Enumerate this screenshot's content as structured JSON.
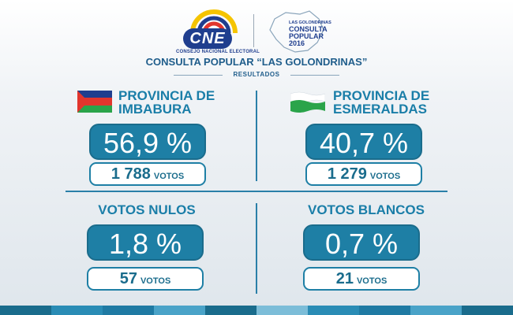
{
  "header": {
    "cne_logo_text": "CNE",
    "cne_subtitle": "CONSEJO NACIONAL ELECTORAL",
    "consulta_logo": {
      "line1": "LAS GOLONDRINAS",
      "line2": "CONSULTA",
      "line3": "POPULAR",
      "line4": "2016"
    },
    "title": "CONSULTA POPULAR “LAS GOLONDRINAS”",
    "subtitle": "RESULTADOS"
  },
  "results": {
    "imbabura": {
      "label_line1": "PROVINCIA DE",
      "label_line2": "IMBABURA",
      "percent": "56,9 %",
      "votes": "1 788",
      "votes_word": "VOTOS"
    },
    "esmeraldas": {
      "label_line1": "PROVINCIA DE",
      "label_line2": "ESMERALDAS",
      "percent": "40,7 %",
      "votes": "1 279",
      "votes_word": "VOTOS"
    },
    "nulos": {
      "label": "VOTOS NULOS",
      "percent": "1,8 %",
      "votes": "57",
      "votes_word": "VOTOS"
    },
    "blancos": {
      "label": "VOTOS BLANCOS",
      "percent": "0,7 %",
      "votes": "21",
      "votes_word": "VOTOS"
    }
  },
  "colors": {
    "accent": "#1e7fa5",
    "title": "#1f5d8b",
    "cne_blue": "#1f3e8e",
    "imbabura_flag": [
      "#1f3e8e",
      "#e2352d",
      "#2aa44a"
    ],
    "esmeraldas_flag": [
      "#ffffff",
      "#2aa44a"
    ]
  }
}
